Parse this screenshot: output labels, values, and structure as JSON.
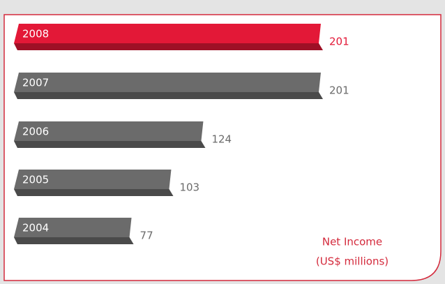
{
  "chart_data": {
    "type": "bar",
    "orientation": "horizontal",
    "title": "Net Income",
    "subtitle": "(US$ millions)",
    "categories": [
      "2008",
      "2007",
      "2006",
      "2005",
      "2004"
    ],
    "values": [
      201,
      201,
      124,
      103,
      77
    ],
    "colors": [
      "#e31837",
      "#6b6b6b",
      "#6b6b6b",
      "#6b6b6b",
      "#6b6b6b"
    ]
  }
}
